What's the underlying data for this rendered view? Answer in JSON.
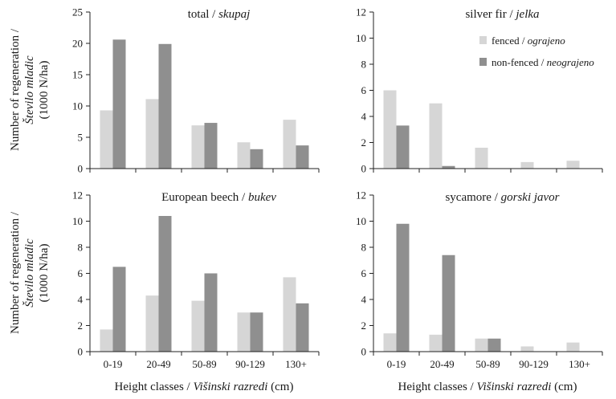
{
  "chart_data": [
    {
      "type": "bar",
      "title": "total / ",
      "title_italic": "skupaj",
      "categories": [
        "0-19",
        "20-49",
        "50-89",
        "90-129",
        "130+"
      ],
      "ylim": [
        0,
        25
      ],
      "yticks": [
        0,
        5,
        10,
        15,
        20,
        25
      ],
      "series": [
        {
          "name": "fenced / ",
          "name_italic": "ograjeno",
          "color": "#d6d6d6",
          "values": [
            9.3,
            11.1,
            6.9,
            4.2,
            7.8
          ]
        },
        {
          "name": "non-fenced / ",
          "name_italic": "neograjeno",
          "color": "#8f8f8f",
          "values": [
            20.6,
            19.9,
            7.3,
            3.1,
            3.7
          ]
        }
      ]
    },
    {
      "type": "bar",
      "title": "silver fir / ",
      "title_italic": "jelka",
      "categories": [
        "0-19",
        "20-49",
        "50-89",
        "90-129",
        "130+"
      ],
      "ylim": [
        0,
        12
      ],
      "yticks": [
        0,
        2,
        4,
        6,
        8,
        10,
        12
      ],
      "legend": "top-right",
      "series": [
        {
          "name": "fenced / ",
          "name_italic": "ograjeno",
          "color": "#d6d6d6",
          "values": [
            6.0,
            5.0,
            1.6,
            0.5,
            0.6
          ]
        },
        {
          "name": "non-fenced / ",
          "name_italic": "neograjeno",
          "color": "#8f8f8f",
          "values": [
            3.3,
            0.2,
            0,
            0,
            0
          ]
        }
      ]
    },
    {
      "type": "bar",
      "title": "European beech / ",
      "title_italic": "bukev",
      "categories": [
        "0-19",
        "20-49",
        "50-89",
        "90-129",
        "130+"
      ],
      "ylim": [
        0,
        12
      ],
      "yticks": [
        0,
        2,
        4,
        6,
        8,
        10,
        12
      ],
      "series": [
        {
          "name": "fenced / ",
          "name_italic": "ograjeno",
          "color": "#d6d6d6",
          "values": [
            1.7,
            4.3,
            3.9,
            3.0,
            5.7
          ]
        },
        {
          "name": "non-fenced / ",
          "name_italic": "neograjeno",
          "color": "#8f8f8f",
          "values": [
            6.5,
            10.4,
            6.0,
            3.0,
            3.7
          ]
        }
      ]
    },
    {
      "type": "bar",
      "title": "sycamore / ",
      "title_italic": "gorski javor",
      "categories": [
        "0-19",
        "20-49",
        "50-89",
        "90-129",
        "130+"
      ],
      "ylim": [
        0,
        12
      ],
      "yticks": [
        0,
        2,
        4,
        6,
        8,
        10,
        12
      ],
      "series": [
        {
          "name": "fenced / ",
          "name_italic": "ograjeno",
          "color": "#d6d6d6",
          "values": [
            1.4,
            1.3,
            1.0,
            0.4,
            0.7
          ]
        },
        {
          "name": "non-fenced / ",
          "name_italic": "neograjeno",
          "color": "#8f8f8f",
          "values": [
            9.8,
            7.4,
            1.0,
            0,
            0
          ]
        }
      ]
    }
  ],
  "ylabel": {
    "line1": "Number of regeneration /",
    "line2": "Število mladic",
    "line3": "(1000 N/ha)"
  },
  "xlabel": {
    "pre": "Height classes / ",
    "italic": "Višinski razredi",
    "post": " (cm)"
  }
}
